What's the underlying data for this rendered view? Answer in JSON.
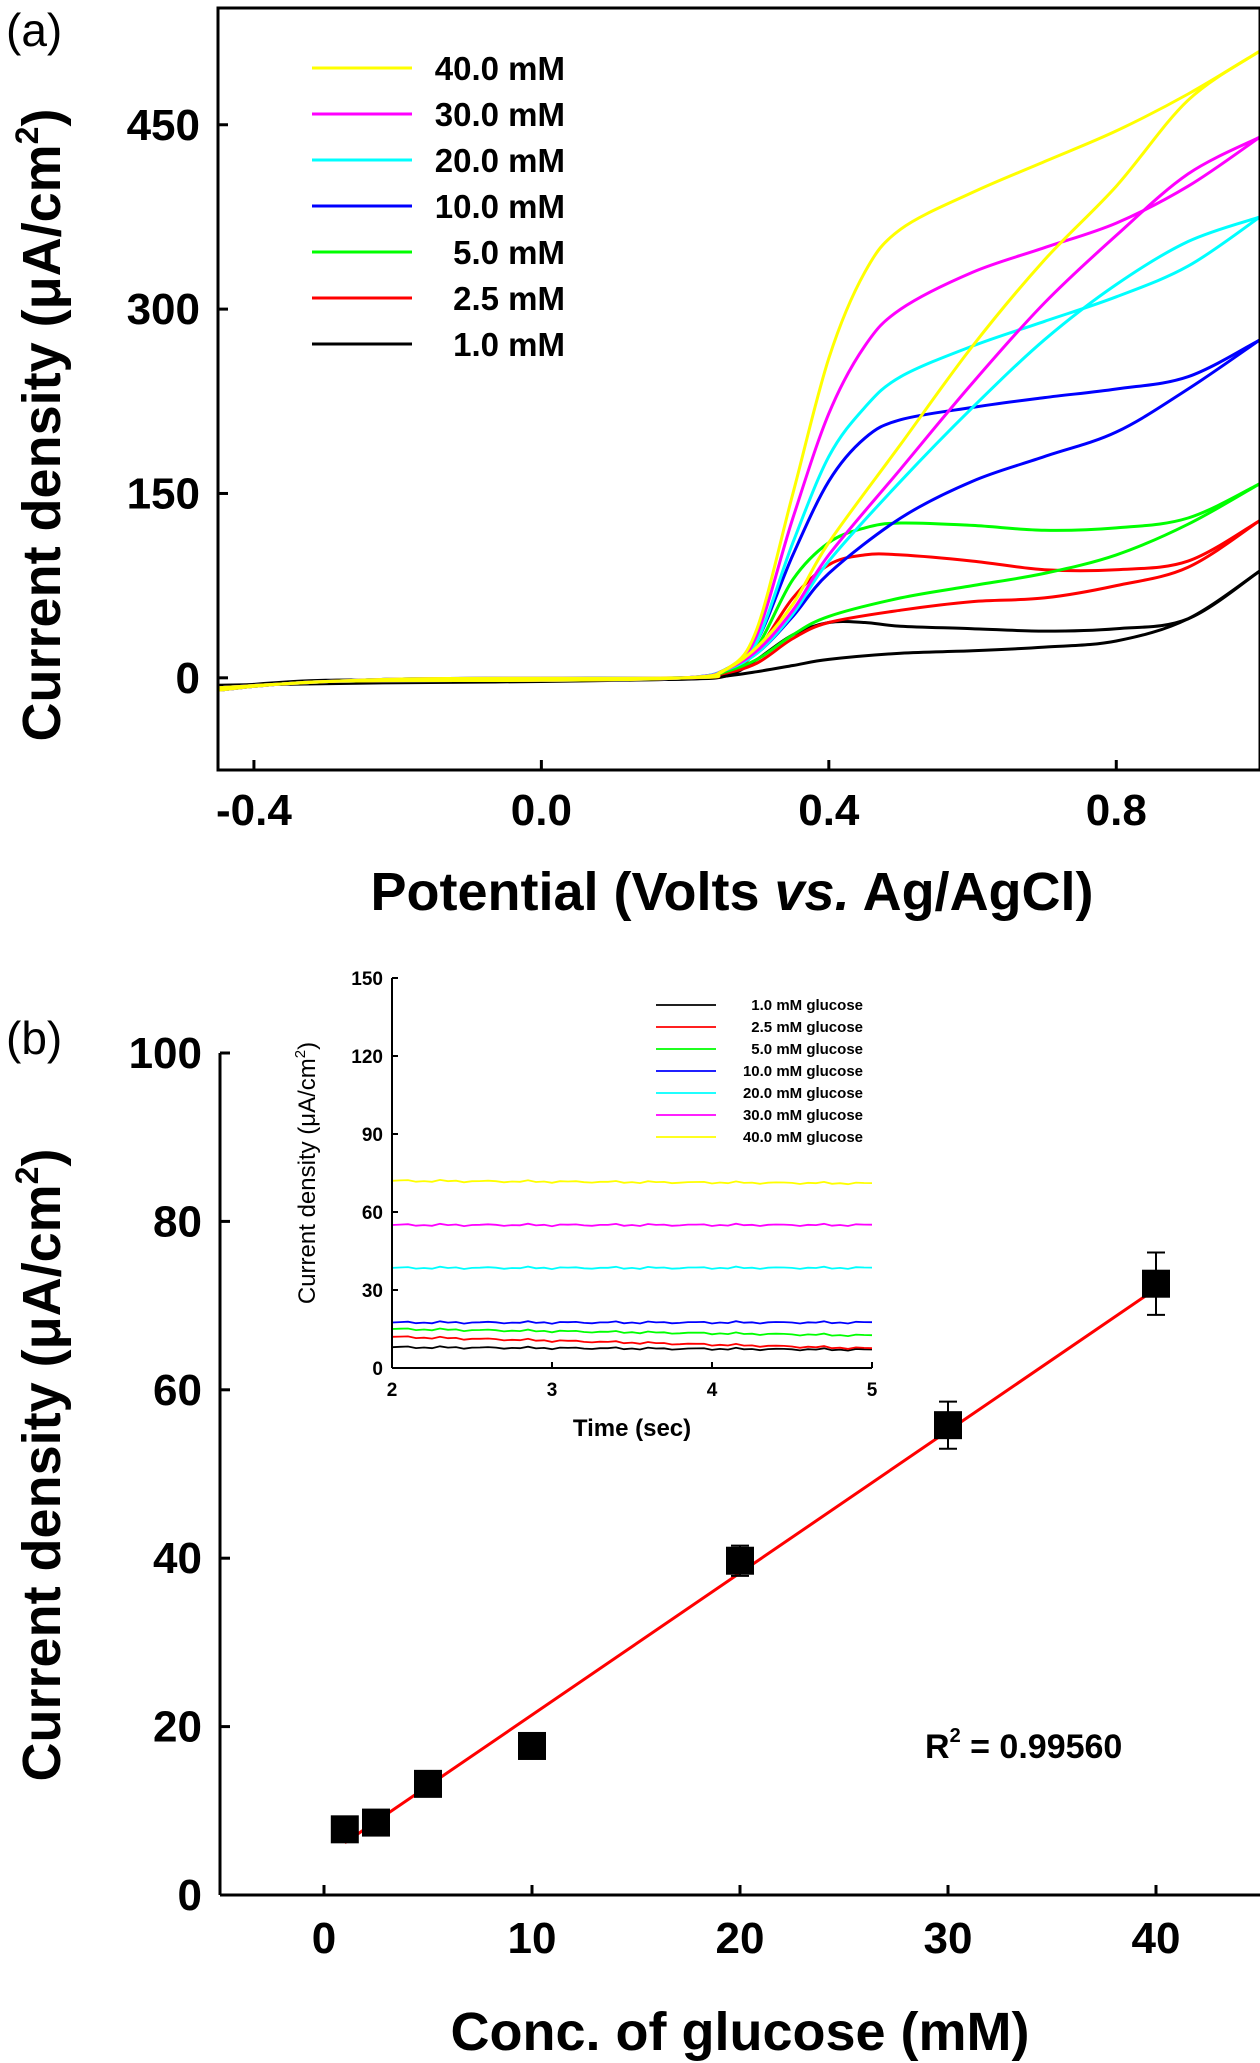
{
  "chart_data": [
    {
      "panel_label": "(a)",
      "type": "line",
      "xlabel": {
        "pre": "Potential (Volts ",
        "italic": "vs.",
        "post": " Ag/AgCl)"
      },
      "ylabel": {
        "pre": "Current density (μA/cm",
        "sup": "2",
        "post": ")"
      },
      "xlim": [
        -0.45,
        1.0
      ],
      "ylim": [
        -75,
        545
      ],
      "xticks": [
        -0.4,
        0.0,
        0.4,
        0.8
      ],
      "xtick_labels": [
        "-0.4",
        "0.0",
        "0.4",
        "0.8"
      ],
      "yticks": [
        0,
        150,
        300,
        450
      ],
      "ytick_labels": [
        "0",
        "150",
        "300",
        "450"
      ],
      "legend_position": "top-left",
      "series": [
        {
          "name": "40.0 mM",
          "color": "#ffff00",
          "forward": [
            [
              -0.45,
              -10
            ],
            [
              -0.3,
              -3
            ],
            [
              0.0,
              -2
            ],
            [
              0.2,
              0
            ],
            [
              0.26,
              8
            ],
            [
              0.3,
              40
            ],
            [
              0.35,
              150
            ],
            [
              0.4,
              260
            ],
            [
              0.45,
              330
            ],
            [
              0.5,
              365
            ],
            [
              0.6,
              395
            ],
            [
              0.7,
              420
            ],
            [
              0.8,
              445
            ],
            [
              0.9,
              475
            ],
            [
              1.0,
              510
            ]
          ],
          "reverse": [
            [
              1.0,
              510
            ],
            [
              0.9,
              470
            ],
            [
              0.8,
              400
            ],
            [
              0.7,
              340
            ],
            [
              0.6,
              270
            ],
            [
              0.5,
              190
            ],
            [
              0.4,
              110
            ],
            [
              0.35,
              60
            ],
            [
              0.3,
              25
            ],
            [
              0.25,
              5
            ],
            [
              0.2,
              0
            ],
            [
              -0.2,
              -1
            ],
            [
              -0.45,
              -8
            ]
          ]
        },
        {
          "name": "30.0 mM",
          "color": "#ff00ff",
          "forward": [
            [
              -0.45,
              -10
            ],
            [
              -0.3,
              -3
            ],
            [
              0.0,
              -2
            ],
            [
              0.2,
              0
            ],
            [
              0.26,
              8
            ],
            [
              0.3,
              35
            ],
            [
              0.35,
              130
            ],
            [
              0.4,
              215
            ],
            [
              0.45,
              270
            ],
            [
              0.5,
              300
            ],
            [
              0.6,
              330
            ],
            [
              0.7,
              350
            ],
            [
              0.8,
              370
            ],
            [
              0.9,
              400
            ],
            [
              1.0,
              440
            ]
          ],
          "reverse": [
            [
              1.0,
              440
            ],
            [
              0.9,
              410
            ],
            [
              0.8,
              360
            ],
            [
              0.7,
              305
            ],
            [
              0.6,
              240
            ],
            [
              0.5,
              170
            ],
            [
              0.4,
              100
            ],
            [
              0.35,
              55
            ],
            [
              0.3,
              22
            ],
            [
              0.25,
              5
            ],
            [
              0.2,
              0
            ],
            [
              -0.2,
              -1
            ],
            [
              -0.45,
              -8
            ]
          ]
        },
        {
          "name": "20.0 mM",
          "color": "#00ffff",
          "forward": [
            [
              -0.45,
              -10
            ],
            [
              -0.3,
              -3
            ],
            [
              0.0,
              -2
            ],
            [
              0.2,
              0
            ],
            [
              0.26,
              8
            ],
            [
              0.3,
              30
            ],
            [
              0.35,
              110
            ],
            [
              0.4,
              180
            ],
            [
              0.45,
              220
            ],
            [
              0.5,
              245
            ],
            [
              0.6,
              270
            ],
            [
              0.7,
              290
            ],
            [
              0.8,
              310
            ],
            [
              0.9,
              335
            ],
            [
              1.0,
              375
            ]
          ],
          "reverse": [
            [
              1.0,
              375
            ],
            [
              0.9,
              355
            ],
            [
              0.8,
              320
            ],
            [
              0.7,
              275
            ],
            [
              0.6,
              220
            ],
            [
              0.5,
              160
            ],
            [
              0.4,
              95
            ],
            [
              0.35,
              52
            ],
            [
              0.3,
              20
            ],
            [
              0.25,
              5
            ],
            [
              0.2,
              0
            ],
            [
              -0.2,
              -1
            ],
            [
              -0.45,
              -8
            ]
          ]
        },
        {
          "name": "10.0 mM",
          "color": "#0000ff",
          "forward": [
            [
              -0.45,
              -10
            ],
            [
              -0.3,
              -3
            ],
            [
              0.0,
              -2
            ],
            [
              0.2,
              0
            ],
            [
              0.26,
              8
            ],
            [
              0.3,
              30
            ],
            [
              0.35,
              100
            ],
            [
              0.4,
              160
            ],
            [
              0.45,
              195
            ],
            [
              0.5,
              210
            ],
            [
              0.6,
              220
            ],
            [
              0.7,
              228
            ],
            [
              0.8,
              235
            ],
            [
              0.9,
              245
            ],
            [
              1.0,
              275
            ]
          ],
          "reverse": [
            [
              1.0,
              275
            ],
            [
              0.9,
              235
            ],
            [
              0.8,
              200
            ],
            [
              0.7,
              180
            ],
            [
              0.6,
              160
            ],
            [
              0.5,
              130
            ],
            [
              0.4,
              85
            ],
            [
              0.35,
              50
            ],
            [
              0.3,
              20
            ],
            [
              0.25,
              5
            ],
            [
              0.2,
              0
            ],
            [
              -0.2,
              -1
            ],
            [
              -0.45,
              -8
            ]
          ]
        },
        {
          "name": "5.0 mM",
          "color": "#00ff00",
          "forward": [
            [
              -0.45,
              -10
            ],
            [
              -0.3,
              -3
            ],
            [
              0.0,
              -2
            ],
            [
              0.2,
              0
            ],
            [
              0.26,
              6
            ],
            [
              0.3,
              25
            ],
            [
              0.35,
              80
            ],
            [
              0.4,
              110
            ],
            [
              0.45,
              122
            ],
            [
              0.5,
              126
            ],
            [
              0.6,
              124
            ],
            [
              0.7,
              120
            ],
            [
              0.8,
              122
            ],
            [
              0.9,
              130
            ],
            [
              1.0,
              158
            ]
          ],
          "reverse": [
            [
              1.0,
              158
            ],
            [
              0.9,
              125
            ],
            [
              0.8,
              100
            ],
            [
              0.7,
              85
            ],
            [
              0.6,
              75
            ],
            [
              0.5,
              65
            ],
            [
              0.4,
              50
            ],
            [
              0.35,
              35
            ],
            [
              0.3,
              15
            ],
            [
              0.25,
              4
            ],
            [
              0.2,
              0
            ],
            [
              -0.2,
              -1
            ],
            [
              -0.45,
              -8
            ]
          ]
        },
        {
          "name": "2.5 mM",
          "color": "#ff0000",
          "forward": [
            [
              -0.45,
              -10
            ],
            [
              -0.3,
              -3
            ],
            [
              0.0,
              -2
            ],
            [
              0.2,
              0
            ],
            [
              0.26,
              5
            ],
            [
              0.3,
              22
            ],
            [
              0.35,
              65
            ],
            [
              0.4,
              92
            ],
            [
              0.45,
              100
            ],
            [
              0.5,
              100
            ],
            [
              0.6,
              95
            ],
            [
              0.7,
              88
            ],
            [
              0.8,
              88
            ],
            [
              0.9,
              95
            ],
            [
              1.0,
              128
            ]
          ],
          "reverse": [
            [
              1.0,
              128
            ],
            [
              0.9,
              90
            ],
            [
              0.8,
              75
            ],
            [
              0.7,
              65
            ],
            [
              0.6,
              62
            ],
            [
              0.5,
              55
            ],
            [
              0.4,
              45
            ],
            [
              0.35,
              32
            ],
            [
              0.3,
              12
            ],
            [
              0.25,
              3
            ],
            [
              0.2,
              0
            ],
            [
              -0.2,
              -1
            ],
            [
              -0.45,
              -8
            ]
          ]
        },
        {
          "name": "1.0 mM",
          "color": "#000000",
          "forward": [
            [
              -0.45,
              -8
            ],
            [
              -0.3,
              -2
            ],
            [
              0.0,
              -2
            ],
            [
              0.2,
              -1
            ],
            [
              0.26,
              2
            ],
            [
              0.3,
              15
            ],
            [
              0.35,
              35
            ],
            [
              0.4,
              45
            ],
            [
              0.45,
              45
            ],
            [
              0.5,
              42
            ],
            [
              0.6,
              40
            ],
            [
              0.7,
              38
            ],
            [
              0.8,
              40
            ],
            [
              0.9,
              48
            ],
            [
              1.0,
              87
            ]
          ],
          "reverse": [
            [
              1.0,
              87
            ],
            [
              0.9,
              48
            ],
            [
              0.8,
              30
            ],
            [
              0.7,
              25
            ],
            [
              0.6,
              22
            ],
            [
              0.5,
              20
            ],
            [
              0.4,
              15
            ],
            [
              0.35,
              10
            ],
            [
              0.3,
              5
            ],
            [
              0.25,
              1
            ],
            [
              0.2,
              -1
            ],
            [
              0.0,
              -3
            ],
            [
              -0.2,
              -4
            ],
            [
              -0.45,
              -6
            ]
          ]
        }
      ]
    },
    {
      "panel_label": "(b)",
      "type": "scatter",
      "xlabel": "Conc. of glucose (mM)",
      "ylabel": {
        "pre": "Current density (μA/cm",
        "sup": "2",
        "post": ")"
      },
      "xlim": [
        -5,
        45
      ],
      "ylim": [
        0,
        100
      ],
      "xticks": [
        0,
        10,
        20,
        30,
        40
      ],
      "xtick_labels": [
        "0",
        "10",
        "20",
        "30",
        "40"
      ],
      "yticks": [
        0,
        20,
        40,
        60,
        80,
        100
      ],
      "ytick_labels": [
        "0",
        "20",
        "40",
        "60",
        "80",
        "100"
      ],
      "points": [
        {
          "x": 1.0,
          "y": 7.8,
          "err": 0
        },
        {
          "x": 2.5,
          "y": 8.6,
          "err": 0
        },
        {
          "x": 5.0,
          "y": 13.2,
          "err": 0
        },
        {
          "x": 10.0,
          "y": 17.7,
          "err": 0
        },
        {
          "x": 20.0,
          "y": 39.7,
          "err": 1.8
        },
        {
          "x": 30.0,
          "y": 55.8,
          "err": 2.8
        },
        {
          "x": 40.0,
          "y": 72.6,
          "err": 3.7
        }
      ],
      "fit": {
        "x": [
          1.0,
          40.0
        ],
        "y": [
          6.2,
          72.0
        ],
        "color": "#ff0000"
      },
      "r2_annotation": {
        "pre": "R",
        "sup": "2",
        "post": " = 0.99560"
      },
      "inset": {
        "type": "line",
        "xlabel": "Time (sec)",
        "ylabel": {
          "pre": "Current density (μA/cm",
          "sup": "2",
          "post": ")"
        },
        "xlim": [
          2,
          5
        ],
        "ylim": [
          0,
          150
        ],
        "xticks": [
          2,
          3,
          4,
          5
        ],
        "xtick_labels": [
          "2",
          "3",
          "4",
          "5"
        ],
        "yticks": [
          0,
          30,
          60,
          90,
          120,
          150
        ],
        "ytick_labels": [
          "0",
          "30",
          "60",
          "90",
          "120",
          "150"
        ],
        "legend_position": "top-right",
        "series": [
          {
            "name": "1.0 mM glucose",
            "color": "#000000",
            "x": [
              2,
              5
            ],
            "y": [
              8,
              7
            ]
          },
          {
            "name": "2.5 mM glucose",
            "color": "#ff0000",
            "x": [
              2,
              5
            ],
            "y": [
              12,
              7.5
            ]
          },
          {
            "name": "5.0 mM glucose",
            "color": "#00ff00",
            "x": [
              2,
              5
            ],
            "y": [
              15,
              12.5
            ]
          },
          {
            "name": "10.0 mM glucose",
            "color": "#0000ff",
            "x": [
              2,
              5
            ],
            "y": [
              17.5,
              17.5
            ]
          },
          {
            "name": "20.0 mM glucose",
            "color": "#00ffff",
            "x": [
              2,
              5
            ],
            "y": [
              38.5,
              38.5
            ]
          },
          {
            "name": "30.0 mM glucose",
            "color": "#ff00ff",
            "x": [
              2,
              5
            ],
            "y": [
              55,
              55
            ]
          },
          {
            "name": "40.0 mM glucose",
            "color": "#ffff00",
            "x": [
              2,
              5
            ],
            "y": [
              72,
              71
            ]
          }
        ]
      }
    }
  ]
}
